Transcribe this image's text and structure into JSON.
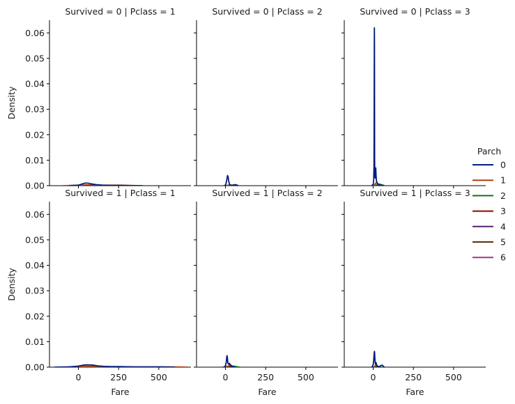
{
  "chart_data": {
    "type": "line",
    "kind": "kde-facet-grid",
    "row_variable": "Survived",
    "col_variable": "Pclass",
    "hue_variable": "Parch",
    "xlabel": "Fare",
    "ylabel": "Density",
    "xlim": [
      -180,
      700
    ],
    "ylim": [
      0,
      0.065
    ],
    "xticks": [
      0,
      250,
      500
    ],
    "yticks": [
      0.0,
      0.01,
      0.02,
      0.03,
      0.04,
      0.05,
      0.06
    ],
    "ytick_labels": [
      "0.00",
      "0.01",
      "0.02",
      "0.03",
      "0.04",
      "0.05",
      "0.06"
    ],
    "legend": {
      "title": "Parch",
      "position": "right",
      "entries": [
        {
          "label": "0",
          "color": "#001c7f"
        },
        {
          "label": "1",
          "color": "#b1400d"
        },
        {
          "label": "2",
          "color": "#12711c"
        },
        {
          "label": "3",
          "color": "#8c0800"
        },
        {
          "label": "4",
          "color": "#591e71"
        },
        {
          "label": "5",
          "color": "#592f0d"
        },
        {
          "label": "6",
          "color": "#a23582"
        }
      ]
    },
    "panels": [
      {
        "title": "Survived = 0 | Pclass = 1",
        "series": [
          {
            "name": "0",
            "x": [
              -60,
              0,
              20,
              40,
              60,
              80,
              110,
              150,
              200,
              263,
              330,
              400
            ],
            "y": [
              0,
              0.0002,
              0.0006,
              0.001,
              0.001,
              0.0007,
              0.0004,
              0.0002,
              0.0001,
              0.0001,
              0,
              0
            ]
          },
          {
            "name": "1",
            "x": [
              -100,
              -40,
              0,
              50,
              100,
              150,
              200,
              263,
              320,
              390
            ],
            "y": [
              0,
              0.0001,
              0.0002,
              0.0003,
              0.0003,
              0.0002,
              0.0002,
              0.0002,
              0.0001,
              0
            ]
          }
        ]
      },
      {
        "title": "Survived = 0 | Pclass = 2",
        "series": [
          {
            "name": "0",
            "x": [
              -10,
              0,
              5,
              10,
              13,
              16,
              20,
              25,
              30,
              40,
              50,
              60,
              73,
              80
            ],
            "y": [
              0,
              0.0002,
              0.0012,
              0.003,
              0.004,
              0.0036,
              0.0018,
              0.0006,
              0.0002,
              0.0001,
              0.0003,
              0.0004,
              0.0002,
              0
            ]
          },
          {
            "name": "1",
            "x": [
              0,
              10,
              20,
              26,
              32,
              40,
              50,
              60
            ],
            "y": [
              0,
              0.0001,
              0.0002,
              0.0004,
              0.0003,
              0.0001,
              0.0001,
              0
            ]
          },
          {
            "name": "2",
            "x": [
              0,
              20,
              30,
              40,
              60
            ],
            "y": [
              0,
              0.0002,
              0.0003,
              0.0002,
              0
            ]
          }
        ]
      },
      {
        "title": "Survived = 0 | Pclass = 3",
        "series": [
          {
            "name": "0",
            "x": [
              -10,
              0,
              3,
              5,
              6,
              7,
              7.5,
              8,
              8.5,
              9,
              10,
              12,
              14,
              16,
              18,
              20,
              25,
              30,
              35,
              40,
              50,
              60,
              70
            ],
            "y": [
              0,
              0.0005,
              0.002,
              0.008,
              0.03,
              0.058,
              0.062,
              0.055,
              0.03,
              0.01,
              0.004,
              0.003,
              0.005,
              0.007,
              0.004,
              0.002,
              0.001,
              0.0007,
              0.0004,
              0.0002,
              0.0001,
              0.0001,
              0
            ]
          },
          {
            "name": "1",
            "x": [
              0,
              10,
              15,
              20,
              25,
              30,
              40,
              50
            ],
            "y": [
              0,
              0.0004,
              0.001,
              0.0012,
              0.0009,
              0.0005,
              0.0002,
              0
            ]
          },
          {
            "name": "2",
            "x": [
              0,
              20,
              30,
              40,
              50,
              60,
              70
            ],
            "y": [
              0,
              0.0003,
              0.0006,
              0.0006,
              0.0004,
              0.0002,
              0
            ]
          },
          {
            "name": "3",
            "x": [
              0,
              20,
              30,
              40,
              50
            ],
            "y": [
              0,
              0.0002,
              0.0003,
              0.0002,
              0
            ]
          },
          {
            "name": "4",
            "x": [
              0,
              20,
              30,
              40,
              50
            ],
            "y": [
              0,
              0.0001,
              0.0002,
              0.0001,
              0
            ]
          },
          {
            "name": "5",
            "x": [
              0,
              20,
              30,
              40,
              50
            ],
            "y": [
              0,
              0.0002,
              0.0003,
              0.0002,
              0
            ]
          },
          {
            "name": "6",
            "x": [
              20,
              35,
              45,
              55
            ],
            "y": [
              0,
              0.0002,
              0.0002,
              0
            ]
          }
        ]
      },
      {
        "title": "Survived = 1 | Pclass = 1",
        "series": [
          {
            "name": "0",
            "x": [
              -150,
              -60,
              0,
              30,
              60,
              90,
              120,
              160,
              200,
              263,
              350,
              450,
              512,
              600
            ],
            "y": [
              0,
              0.0001,
              0.0004,
              0.0008,
              0.0009,
              0.0008,
              0.0005,
              0.0003,
              0.0002,
              0.0002,
              0.0001,
              0.0001,
              0.0001,
              0
            ]
          },
          {
            "name": "1",
            "x": [
              -140,
              -60,
              0,
              60,
              120,
              200,
              263,
              350,
              450,
              512,
              600,
              680
            ],
            "y": [
              0,
              0.0001,
              0.0002,
              0.0003,
              0.0003,
              0.0002,
              0.0002,
              0.0001,
              0.0001,
              0.0001,
              0.0001,
              0
            ]
          },
          {
            "name": "2",
            "x": [
              -60,
              0,
              80,
              150,
              220
            ],
            "y": [
              0,
              0.0001,
              0.0002,
              0.0001,
              0
            ]
          }
        ]
      },
      {
        "title": "Survived = 1 | Pclass = 2",
        "series": [
          {
            "name": "0",
            "x": [
              -10,
              0,
              5,
              8,
              10,
              12,
              15,
              20,
              25,
              30,
              40,
              50,
              60
            ],
            "y": [
              0,
              0.0005,
              0.002,
              0.004,
              0.0045,
              0.0038,
              0.0015,
              0.0012,
              0.0015,
              0.0008,
              0.0003,
              0.0001,
              0
            ]
          },
          {
            "name": "1",
            "x": [
              0,
              15,
              25,
              30,
              35,
              45,
              55
            ],
            "y": [
              0,
              0.0003,
              0.0008,
              0.001,
              0.0008,
              0.0003,
              0
            ]
          },
          {
            "name": "2",
            "x": [
              -20,
              0,
              20,
              35,
              50,
              70,
              90
            ],
            "y": [
              0,
              0.0002,
              0.0004,
              0.0005,
              0.0004,
              0.0002,
              0
            ]
          },
          {
            "name": "3",
            "x": [
              10,
              25,
              35,
              45
            ],
            "y": [
              0,
              0.0002,
              0.0002,
              0
            ]
          }
        ]
      },
      {
        "title": "Survived = 1 | Pclass = 3",
        "series": [
          {
            "name": "0",
            "x": [
              -10,
              -5,
              0,
              3,
              5,
              7,
              8,
              9,
              10,
              12,
              14,
              16,
              18,
              20,
              25,
              30,
              35,
              40,
              45,
              50,
              56,
              60,
              70
            ],
            "y": [
              0,
              0.0003,
              0.001,
              0.0025,
              0.0045,
              0.006,
              0.0062,
              0.0055,
              0.004,
              0.002,
              0.0012,
              0.0015,
              0.0018,
              0.0012,
              0.0005,
              0.0003,
              0.0002,
              0.0003,
              0.0005,
              0.0007,
              0.0008,
              0.0005,
              0
            ]
          },
          {
            "name": "1",
            "x": [
              0,
              10,
              15,
              20,
              25,
              35
            ],
            "y": [
              0,
              0.0004,
              0.0008,
              0.0007,
              0.0004,
              0
            ]
          },
          {
            "name": "2",
            "x": [
              0,
              15,
              25,
              35,
              50
            ],
            "y": [
              0,
              0.0003,
              0.0004,
              0.0002,
              0
            ]
          }
        ]
      }
    ]
  }
}
